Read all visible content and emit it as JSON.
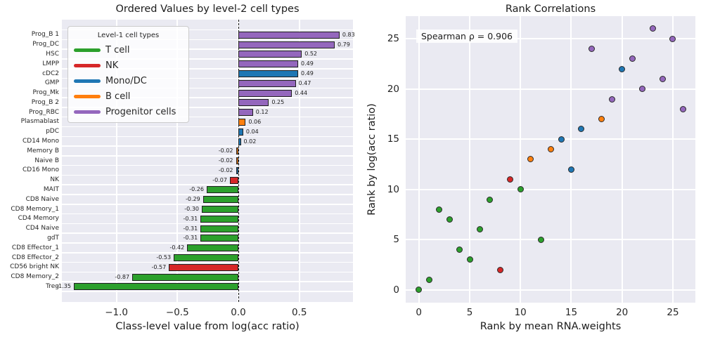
{
  "figure": {
    "background": "#ffffff"
  },
  "palette": {
    "axes_background": "#eaeaf2",
    "grid": "#ffffff",
    "text": "#262626",
    "bar_edge": "#1f1f1f",
    "groups": {
      "t_cell": "#2ca02c",
      "nk": "#d62728",
      "mono_dc": "#1f77b4",
      "b_cell": "#ff7f0e",
      "progenitor": "#9467bd"
    }
  },
  "legend": {
    "title": "Level-1 cell types",
    "items": [
      {
        "label": "T cell",
        "group": "t_cell"
      },
      {
        "label": "NK",
        "group": "nk"
      },
      {
        "label": "Mono/DC",
        "group": "mono_dc"
      },
      {
        "label": "B cell",
        "group": "b_cell"
      },
      {
        "label": "Progenitor cells",
        "group": "progenitor"
      }
    ]
  },
  "chart_data": [
    {
      "type": "bar",
      "orientation": "horizontal",
      "title": "Ordered Values by level-2 cell types",
      "xlabel": "Class-level value from log(acc ratio)",
      "xlim": [
        -1.45,
        0.94
      ],
      "grid": true,
      "zero_line": true,
      "x_ticks": [
        {
          "value": -1.0,
          "label": "−1.0"
        },
        {
          "value": -0.5,
          "label": "−0.5"
        },
        {
          "value": 0.0,
          "label": "0.0"
        },
        {
          "value": 0.5,
          "label": "0.5"
        }
      ],
      "bars": [
        {
          "name": "Prog_B 1",
          "value": 0.83,
          "label": "0.83",
          "group": "progenitor"
        },
        {
          "name": "Prog_DC",
          "value": 0.79,
          "label": "0.79",
          "group": "progenitor"
        },
        {
          "name": "HSC",
          "value": 0.52,
          "label": "0.52",
          "group": "progenitor"
        },
        {
          "name": "LMPP",
          "value": 0.49,
          "label": "0.49",
          "group": "progenitor"
        },
        {
          "name": "cDC2",
          "value": 0.49,
          "label": "0.49",
          "group": "mono_dc"
        },
        {
          "name": "GMP",
          "value": 0.47,
          "label": "0.47",
          "group": "progenitor"
        },
        {
          "name": "Prog_Mk",
          "value": 0.44,
          "label": "0.44",
          "group": "progenitor"
        },
        {
          "name": "Prog_B 2",
          "value": 0.25,
          "label": "0.25",
          "group": "progenitor"
        },
        {
          "name": "Prog_RBC",
          "value": 0.12,
          "label": "0.12",
          "group": "progenitor"
        },
        {
          "name": "Plasmablast",
          "value": 0.06,
          "label": "0.06",
          "group": "b_cell"
        },
        {
          "name": "pDC",
          "value": 0.04,
          "label": "0.04",
          "group": "mono_dc"
        },
        {
          "name": "CD14 Mono",
          "value": 0.02,
          "label": "0.02",
          "group": "mono_dc"
        },
        {
          "name": "Memory B",
          "value": -0.02,
          "label": "-0.02",
          "group": "b_cell"
        },
        {
          "name": "Naive B",
          "value": -0.02,
          "label": "-0.02",
          "group": "b_cell"
        },
        {
          "name": "CD16 Mono",
          "value": -0.02,
          "label": "-0.02",
          "group": "mono_dc"
        },
        {
          "name": "NK",
          "value": -0.07,
          "label": "-0.07",
          "group": "nk"
        },
        {
          "name": "MAIT",
          "value": -0.26,
          "label": "-0.26",
          "group": "t_cell"
        },
        {
          "name": "CD8 Naive",
          "value": -0.29,
          "label": "-0.29",
          "group": "t_cell"
        },
        {
          "name": "CD8 Memory_1",
          "value": -0.3,
          "label": "-0.30",
          "group": "t_cell"
        },
        {
          "name": "CD4 Memory",
          "value": -0.31,
          "label": "-0.31",
          "group": "t_cell"
        },
        {
          "name": "CD4 Naive",
          "value": -0.31,
          "label": "-0.31",
          "group": "t_cell"
        },
        {
          "name": "gdT",
          "value": -0.31,
          "label": "-0.31",
          "group": "t_cell"
        },
        {
          "name": "CD8 Effector_1",
          "value": -0.42,
          "label": "-0.42",
          "group": "t_cell"
        },
        {
          "name": "CD8 Effector_2",
          "value": -0.53,
          "label": "-0.53",
          "group": "t_cell"
        },
        {
          "name": "CD56 bright NK",
          "value": -0.57,
          "label": "-0.57",
          "group": "nk"
        },
        {
          "name": "CD8 Memory_2",
          "value": -0.87,
          "label": "-0.87",
          "group": "t_cell"
        },
        {
          "name": "Treg",
          "value": -1.35,
          "label": "-1.35",
          "group": "t_cell"
        }
      ]
    },
    {
      "type": "scatter",
      "title": "Rank Correlations",
      "xlabel": "Rank by mean RNA.weights",
      "ylabel": "Rank by log(acc ratio)",
      "annotation": "Spearman ρ = 0.906",
      "xlim": [
        -1.3,
        27.3
      ],
      "ylim": [
        -1.3,
        27.3
      ],
      "grid": true,
      "x_ticks": [
        0,
        5,
        10,
        15,
        20,
        25
      ],
      "y_ticks": [
        0,
        5,
        10,
        15,
        20,
        25
      ],
      "points": [
        {
          "x": 0,
          "y": 0,
          "group": "t_cell"
        },
        {
          "x": 1,
          "y": 1,
          "group": "t_cell"
        },
        {
          "x": 2,
          "y": 8,
          "group": "t_cell"
        },
        {
          "x": 3,
          "y": 7,
          "group": "t_cell"
        },
        {
          "x": 4,
          "y": 4,
          "group": "t_cell"
        },
        {
          "x": 5,
          "y": 3,
          "group": "t_cell"
        },
        {
          "x": 6,
          "y": 6,
          "group": "t_cell"
        },
        {
          "x": 7,
          "y": 9,
          "group": "t_cell"
        },
        {
          "x": 8,
          "y": 2,
          "group": "nk"
        },
        {
          "x": 9,
          "y": 11,
          "group": "nk"
        },
        {
          "x": 10,
          "y": 10,
          "group": "t_cell"
        },
        {
          "x": 11,
          "y": 13,
          "group": "b_cell"
        },
        {
          "x": 12,
          "y": 5,
          "group": "t_cell"
        },
        {
          "x": 13,
          "y": 14,
          "group": "b_cell"
        },
        {
          "x": 14,
          "y": 15,
          "group": "mono_dc"
        },
        {
          "x": 15,
          "y": 12,
          "group": "mono_dc"
        },
        {
          "x": 16,
          "y": 16,
          "group": "mono_dc"
        },
        {
          "x": 17,
          "y": 24,
          "group": "progenitor"
        },
        {
          "x": 18,
          "y": 17,
          "group": "b_cell"
        },
        {
          "x": 19,
          "y": 19,
          "group": "progenitor"
        },
        {
          "x": 20,
          "y": 22,
          "group": "mono_dc"
        },
        {
          "x": 21,
          "y": 23,
          "group": "progenitor"
        },
        {
          "x": 22,
          "y": 20,
          "group": "progenitor"
        },
        {
          "x": 23,
          "y": 26,
          "group": "progenitor"
        },
        {
          "x": 24,
          "y": 21,
          "group": "progenitor"
        },
        {
          "x": 25,
          "y": 25,
          "group": "progenitor"
        },
        {
          "x": 26,
          "y": 18,
          "group": "progenitor"
        }
      ]
    }
  ]
}
